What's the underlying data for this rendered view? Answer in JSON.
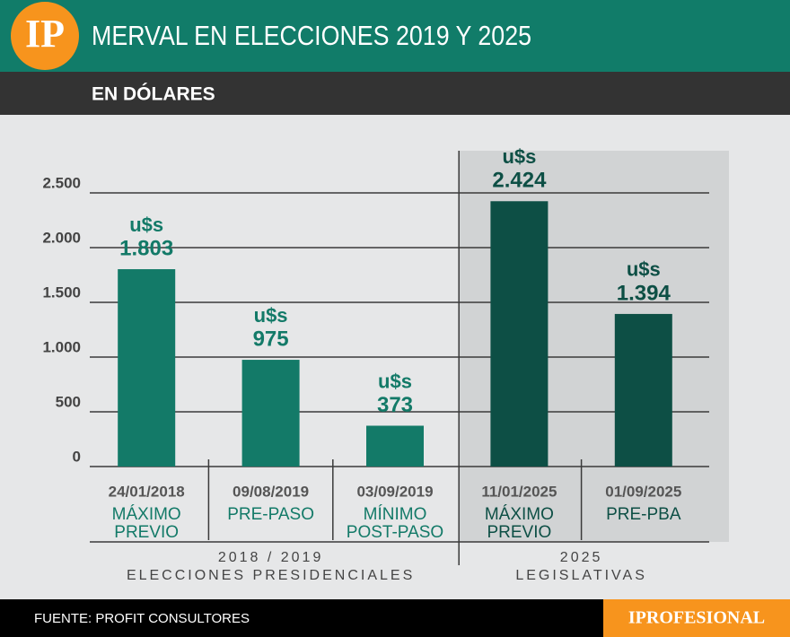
{
  "chart_data": {
    "type": "bar",
    "logo": "IP",
    "title": "MERVAL EN ELECCIONES 2019 Y 2025",
    "subtitle": "EN DÓLARES",
    "value_prefix": "u$s",
    "ylim": [
      0,
      2500
    ],
    "yticks": [
      0,
      500,
      {
        "value": 1000,
        "label": "1.000"
      },
      {
        "value": 1500,
        "label": "1.500"
      },
      {
        "value": 2000,
        "label": "2.000"
      },
      {
        "value": 2500,
        "label": "2.500"
      }
    ],
    "grid": true,
    "groups": [
      {
        "period": "2018 / 2019",
        "label": "ELECCIONES PRESIDENCIALES",
        "color": "#137a68",
        "background": "#e6e7e8",
        "categories": [
          "24/01/2018",
          "09/08/2019",
          "03/09/2019"
        ],
        "notes": [
          [
            "MÁXIMO",
            "PREVIO"
          ],
          [
            "PRE-PASO"
          ],
          [
            "MÍNIMO",
            "POST-PASO"
          ]
        ],
        "values": [
          1803,
          975,
          373
        ],
        "value_labels": [
          "1.803",
          "975",
          "373"
        ]
      },
      {
        "period": "2025",
        "label": "LEGISLATIVAS",
        "color": "#0d4f45",
        "background": "#d1d3d4",
        "categories": [
          "11/01/2025",
          "01/09/2025"
        ],
        "notes": [
          [
            "MÁXIMO",
            "PREVIO"
          ],
          [
            "PRE-PBA"
          ]
        ],
        "values": [
          2424,
          1394
        ],
        "value_labels": [
          "2.424",
          "1.394"
        ]
      }
    ],
    "source": "FUENTE: PROFIT CONSULTORES",
    "brand": "IPROFESIONAL"
  }
}
